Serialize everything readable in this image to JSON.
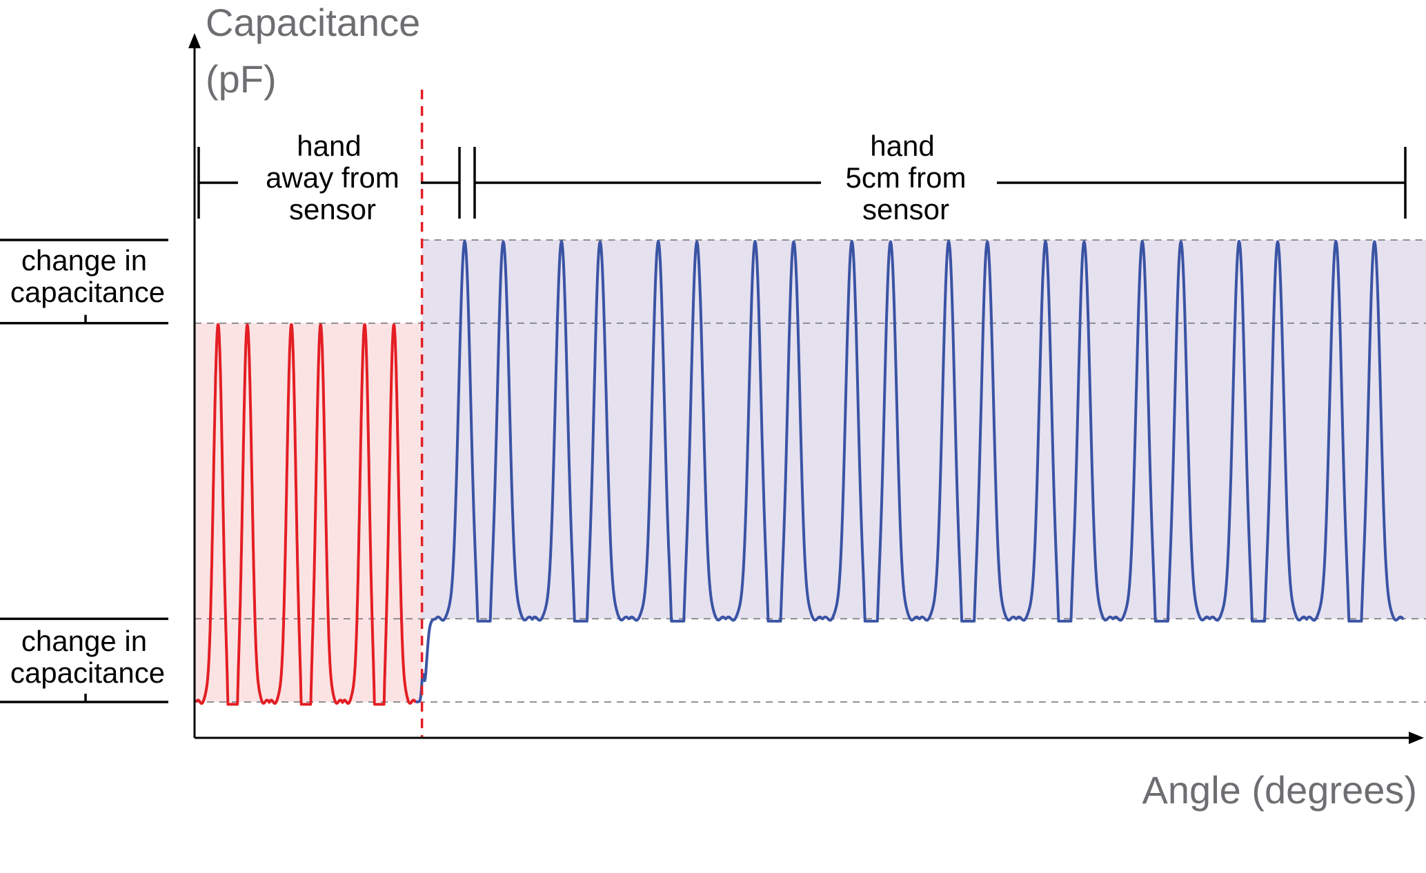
{
  "chart_data": {
    "type": "line",
    "xlabel": "Angle (degrees)",
    "ylabel_lines": [
      "Capacitance",
      "(pF)"
    ],
    "x_ticks_shown": false,
    "y_ticks_shown": false,
    "grid": false,
    "levels": {
      "red_low": 0.0,
      "red_high": 0.82,
      "blue_low": 0.18,
      "blue_high": 1.0,
      "y_range": [
        -0.1,
        1.0
      ]
    },
    "regions": [
      {
        "label_lines": [
          "hand",
          "away from",
          "sensor"
        ],
        "x_range": [
          0,
          3.0
        ],
        "color": "#e31e24",
        "fill": "#fbe3e4"
      },
      {
        "label_lines": [
          "hand",
          "5cm from",
          "sensor"
        ],
        "x_range": [
          3.0,
          16.0
        ],
        "color": "#3a53a4",
        "fill": "#e6e1ef"
      }
    ],
    "change_labels": [
      {
        "label_lines": [
          "change in",
          "capacitance"
        ],
        "between": [
          "red_high",
          "blue_high"
        ]
      },
      {
        "label_lines": [
          "change in",
          "capacitance"
        ],
        "between": [
          "red_low",
          "blue_low"
        ]
      }
    ],
    "series": [
      {
        "color": "#e31e24",
        "x_range": [
          0,
          3.0
        ],
        "double_peak_count": 3,
        "peak_value": 0.82,
        "mid_dip_value": 0.2,
        "trough_value": 0.0
      },
      {
        "color": "#3a53a4",
        "x_range": [
          3.0,
          16.0
        ],
        "double_peak_count": 10,
        "peak_value": 1.0,
        "mid_dip_value": 0.4,
        "trough_value": 0.18
      }
    ],
    "divider": {
      "x": 3.0,
      "color": "#e31e24",
      "style": "dashed"
    }
  }
}
